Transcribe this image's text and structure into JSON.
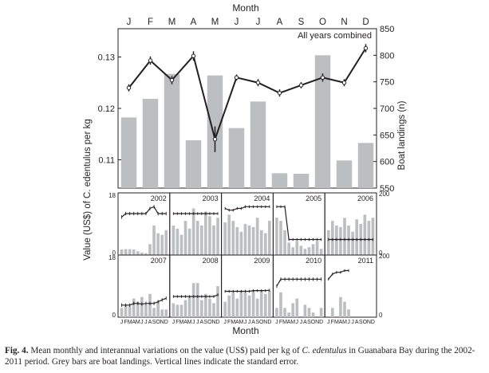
{
  "chart_data": [
    {
      "type": "bar+line",
      "title": "",
      "annotation": "All years combined",
      "xlabel": "Month",
      "ylabel_left": "Value (US$) of C. edentulus per kg",
      "ylabel_right": "Boat landings (n)",
      "categories": [
        "J",
        "F",
        "M",
        "A",
        "M",
        "J",
        "J",
        "A",
        "S",
        "O",
        "N",
        "D"
      ],
      "y_left_ticks": [
        "0.11",
        "0.12",
        "0.13"
      ],
      "y_left_range": [
        0.1045,
        0.1355
      ],
      "y_right_ticks": [
        "550",
        "600",
        "650",
        "700",
        "750",
        "800",
        "850"
      ],
      "y_right_range": [
        550,
        850
      ],
      "series": [
        {
          "name": "",
          "kind": "bar",
          "axis": "right",
          "color": "#bcbec0",
          "values": [
            683,
            718,
            765,
            640,
            762,
            663,
            713,
            578,
            577,
            800,
            602,
            635
          ]
        },
        {
          "name": "",
          "kind": "line",
          "axis": "left",
          "color": "#231f20",
          "values": [
            0.124,
            0.1293,
            0.1255,
            0.1302,
            0.114,
            0.126,
            0.125,
            0.123,
            0.1245,
            0.126,
            0.125,
            0.1317
          ],
          "error": [
            0.0007,
            0.0008,
            0.0008,
            0.0009,
            0.0025,
            0.0006,
            0.0007,
            0.0007,
            0.0006,
            0.0008,
            0.0007,
            0.0008
          ]
        }
      ]
    },
    {
      "type": "bar+line small multiples",
      "xlabel": "Month",
      "month_ticks": [
        "J",
        "F",
        "M",
        "A",
        "M",
        "J",
        "J",
        "A",
        "S",
        "O",
        "N",
        "D"
      ],
      "y_left_ticks": [
        "0",
        "18"
      ],
      "y_right_ticks": [
        "0",
        "200"
      ],
      "y_left_range": [
        0,
        18
      ],
      "y_right_range": [
        0,
        200
      ],
      "panels": [
        {
          "year": "2002",
          "bars": [
            18,
            19,
            19,
            18,
            12,
            8,
            6,
            35,
            95,
            70,
            65,
            80
          ],
          "line": [
            11,
            12,
            12,
            12,
            12,
            12,
            12,
            13.5,
            14,
            12,
            12,
            12
          ],
          "err": 0.5
        },
        {
          "year": "2003",
          "bars": [
            95,
            85,
            65,
            110,
            85,
            150,
            110,
            95,
            140,
            125,
            95,
            120
          ],
          "line": [
            12,
            12,
            12,
            12,
            12,
            12,
            12,
            12,
            12,
            12,
            12,
            12
          ],
          "err": 0.4
        },
        {
          "year": "2004",
          "bars": [
            105,
            130,
            110,
            90,
            75,
            100,
            95,
            90,
            120,
            80,
            70,
            110
          ],
          "line": [
            13.5,
            13,
            13,
            13.5,
            13.5,
            14,
            14,
            14,
            14,
            14,
            14,
            14
          ],
          "err": 0.4
        },
        {
          "year": "2005",
          "bars": [
            120,
            110,
            80,
            40,
            25,
            45,
            30,
            20,
            25,
            35,
            45,
            20
          ],
          "line": [
            14,
            14,
            14,
            4.5,
            4.5,
            4.5,
            4.5,
            4.5,
            4.5,
            4.5,
            4.5,
            4.5
          ],
          "err": 0.4
        },
        {
          "year": "2006",
          "bars": [
            80,
            110,
            95,
            90,
            120,
            95,
            75,
            115,
            100,
            130,
            110,
            120
          ],
          "line": [
            4.5,
            4.5,
            4.5,
            4.5,
            4.5,
            4.5,
            4.5,
            4.5,
            4.5,
            4.5,
            4.5,
            4.5
          ],
          "err": 0.4
        },
        {
          "year": "2007",
          "bars": [
            30,
            40,
            35,
            60,
            50,
            65,
            40,
            75,
            30,
            50,
            25,
            25
          ],
          "line": [
            3.5,
            3.5,
            3.5,
            4,
            4,
            3.8,
            4,
            4,
            4,
            4.5,
            5,
            5.5
          ],
          "err": 0.5
        },
        {
          "year": "2008",
          "bars": [
            45,
            40,
            40,
            55,
            65,
            110,
            110,
            55,
            75,
            60,
            45,
            100
          ],
          "line": [
            6,
            6,
            6,
            6,
            6,
            6,
            6,
            6,
            6,
            6,
            6,
            6.5
          ],
          "err": 0.4
        },
        {
          "year": "2009",
          "bars": [
            50,
            70,
            80,
            60,
            85,
            80,
            70,
            85,
            60,
            85,
            75,
            85
          ],
          "line": [
            7.5,
            7.5,
            7.5,
            7.5,
            7.5,
            7.5,
            7.5,
            7.7,
            7.7,
            7.7,
            7.7,
            7.8
          ],
          "err": 0.4
        },
        {
          "year": "2010",
          "bars": [
            30,
            80,
            30,
            15,
            45,
            60,
            0,
            40,
            30,
            15,
            0,
            30
          ],
          "line": [
            9,
            11,
            11,
            11,
            11,
            11,
            11,
            11,
            11,
            11,
            11,
            11
          ],
          "err": 0.5
        },
        {
          "year": "2011",
          "bars": [
            0,
            30,
            0,
            65,
            50,
            25,
            0,
            0,
            0,
            0,
            0,
            0
          ],
          "line": [
            11,
            12.5,
            13,
            13,
            13.5,
            13.5,
            null,
            null,
            null,
            null,
            null,
            null
          ],
          "err": 0.4
        }
      ]
    }
  ],
  "labels": {
    "top_axis_title": "Month",
    "bottom_axis_title": "Month"
  },
  "caption": {
    "fig_label": "Fig. 4.",
    "text_before": " Mean monthly and interannual variations on the value (US$) paid per kg of ",
    "species": "C. edentulus",
    "text_after": " in Guanabara Bay during the 2002-2011 period. Grey bars are boat landings. Vertical lines indicate the standard error."
  }
}
